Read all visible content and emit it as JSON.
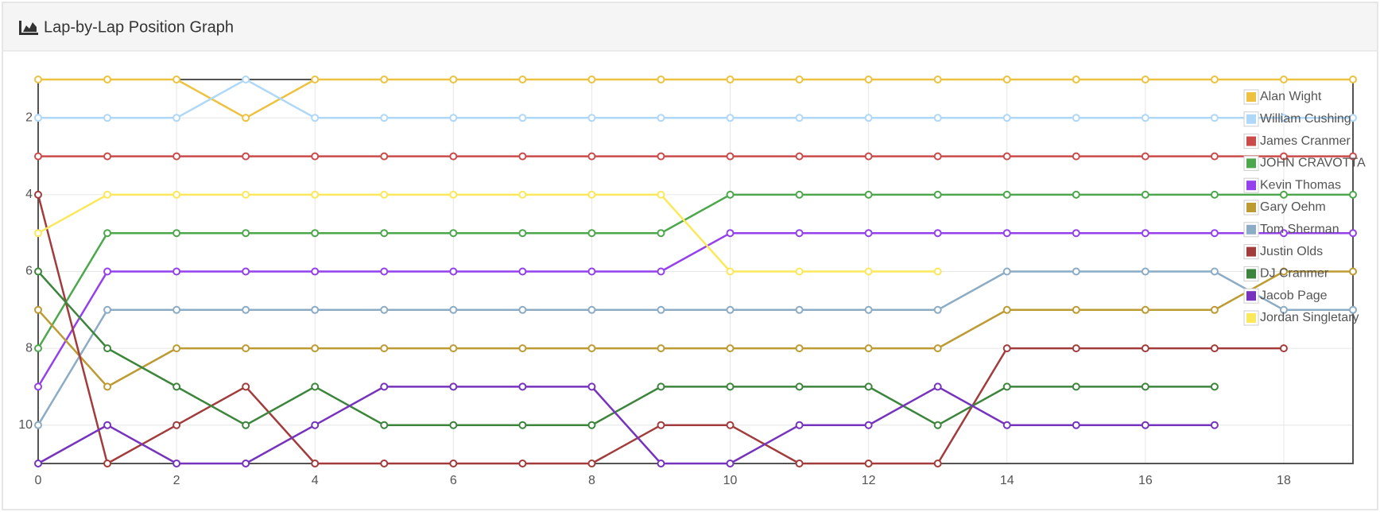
{
  "header": {
    "title": "Lap-by-Lap Position Graph"
  },
  "chart_data": {
    "type": "line",
    "x": [
      0,
      1,
      2,
      3,
      4,
      5,
      6,
      7,
      8,
      9,
      10,
      11,
      12,
      13,
      14,
      15,
      16,
      17,
      18,
      19
    ],
    "xlim": [
      0,
      19
    ],
    "xticks": [
      0,
      2,
      4,
      6,
      8,
      10,
      12,
      14,
      16,
      18
    ],
    "ylim": [
      1,
      11
    ],
    "yticks": [
      2,
      4,
      6,
      8,
      10
    ],
    "y_inverted": true,
    "grid": true,
    "legend": "top-right",
    "series": [
      {
        "name": "Alan Wight",
        "color": "#edc240",
        "values": [
          1,
          1,
          1,
          2,
          1,
          1,
          1,
          1,
          1,
          1,
          1,
          1,
          1,
          1,
          1,
          1,
          1,
          1,
          1,
          1
        ]
      },
      {
        "name": "William Cushing",
        "color": "#afd8f8",
        "values": [
          2,
          2,
          2,
          1,
          2,
          2,
          2,
          2,
          2,
          2,
          2,
          2,
          2,
          2,
          2,
          2,
          2,
          2,
          2,
          2
        ]
      },
      {
        "name": "James Cranmer",
        "color": "#cb4b4b",
        "values": [
          3,
          3,
          3,
          3,
          3,
          3,
          3,
          3,
          3,
          3,
          3,
          3,
          3,
          3,
          3,
          3,
          3,
          3,
          3,
          3
        ]
      },
      {
        "name": "JOHN CRAVOTTA",
        "color": "#4da74d",
        "values": [
          8,
          5,
          5,
          5,
          5,
          5,
          5,
          5,
          5,
          5,
          4,
          4,
          4,
          4,
          4,
          4,
          4,
          4,
          4,
          4
        ]
      },
      {
        "name": "Kevin Thomas",
        "color": "#9440ed",
        "values": [
          9,
          6,
          6,
          6,
          6,
          6,
          6,
          6,
          6,
          6,
          5,
          5,
          5,
          5,
          5,
          5,
          5,
          5,
          5,
          5
        ]
      },
      {
        "name": "Gary Oehm",
        "color": "#bd9b33",
        "values": [
          7,
          9,
          8,
          8,
          8,
          8,
          8,
          8,
          8,
          8,
          8,
          8,
          8,
          8,
          7,
          7,
          7,
          7,
          6,
          6
        ]
      },
      {
        "name": "Tom Sherman",
        "color": "#8cacc6",
        "values": [
          10,
          7,
          7,
          7,
          7,
          7,
          7,
          7,
          7,
          7,
          7,
          7,
          7,
          7,
          6,
          6,
          6,
          6,
          7,
          7
        ]
      },
      {
        "name": "Justin Olds",
        "color": "#a23c3c",
        "values": [
          4,
          11,
          10,
          9,
          11,
          11,
          11,
          11,
          11,
          10,
          10,
          11,
          11,
          11,
          8,
          8,
          8,
          8,
          8,
          null
        ]
      },
      {
        "name": "DJ Cranmer",
        "color": "#3d853d",
        "values": [
          6,
          8,
          9,
          10,
          9,
          10,
          10,
          10,
          10,
          9,
          9,
          9,
          9,
          10,
          9,
          9,
          9,
          9,
          null,
          null
        ]
      },
      {
        "name": "Jacob Page",
        "color": "#7633bd",
        "values": [
          11,
          10,
          11,
          11,
          10,
          9,
          9,
          9,
          9,
          11,
          11,
          10,
          10,
          9,
          10,
          10,
          10,
          10,
          null,
          null
        ]
      },
      {
        "name": "Jordan Singletary",
        "color": "#fbe85b",
        "values": [
          5,
          4,
          4,
          4,
          4,
          4,
          4,
          4,
          4,
          4,
          6,
          6,
          6,
          6,
          null,
          null,
          null,
          null,
          null,
          null
        ]
      }
    ]
  }
}
